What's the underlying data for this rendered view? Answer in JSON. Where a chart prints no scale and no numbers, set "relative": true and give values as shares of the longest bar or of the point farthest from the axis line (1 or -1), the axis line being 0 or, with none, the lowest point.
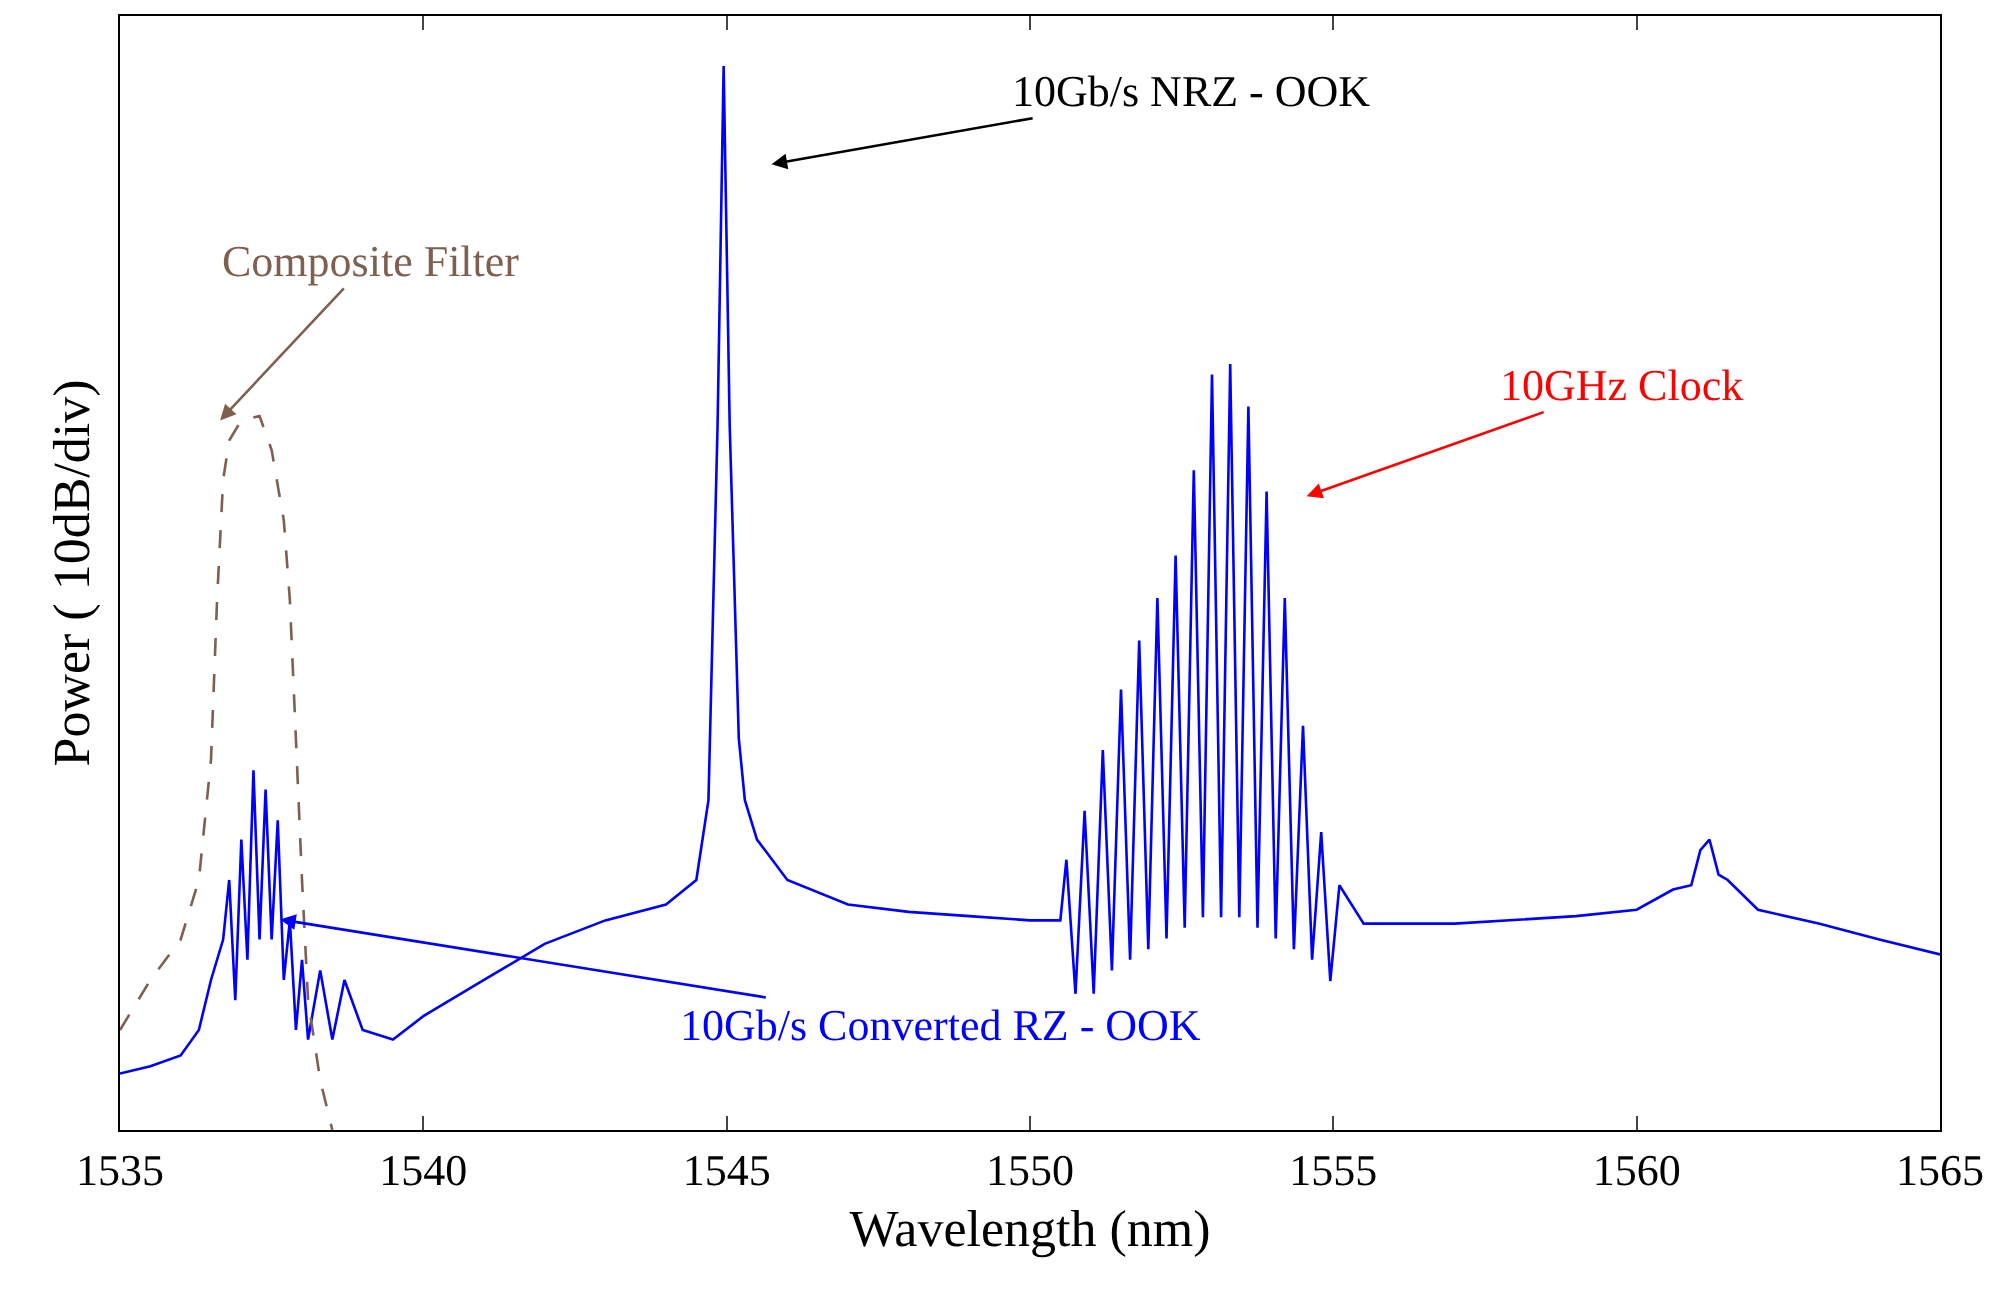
{
  "chart_data": {
    "type": "line",
    "relative": true,
    "xlabel": "Wavelength (nm)",
    "ylabel": "Power ( 10dB/div)",
    "xlim": [
      1535,
      1565
    ],
    "xticks": [
      1535,
      1540,
      1545,
      1550,
      1555,
      1560,
      1565
    ],
    "grid": false,
    "marker": "none",
    "series": [
      {
        "color": "#0000ff",
        "line_style": "solid",
        "x": [
          1535,
          1535.5,
          1536,
          1536.3,
          1536.5,
          1536.7,
          1536.8,
          1536.9,
          1537,
          1537.1,
          1537.2,
          1537.3,
          1537.4,
          1537.5,
          1537.6,
          1537.7,
          1537.8,
          1537.9,
          1538,
          1538.1,
          1538.3,
          1538.5,
          1538.7,
          1539,
          1539.5,
          1540,
          1541,
          1542,
          1543,
          1544,
          1544.5,
          1544.7,
          1544.85,
          1544.95,
          1545.05,
          1545.2,
          1545.3,
          1545.5,
          1546,
          1547,
          1548,
          1549,
          1550,
          1550.5,
          1550.6,
          1550.75,
          1550.9,
          1551.05,
          1551.2,
          1551.35,
          1551.5,
          1551.65,
          1551.8,
          1551.95,
          1552.1,
          1552.25,
          1552.4,
          1552.55,
          1552.7,
          1552.85,
          1553,
          1553.15,
          1553.3,
          1553.45,
          1553.6,
          1553.75,
          1553.9,
          1554.05,
          1554.2,
          1554.35,
          1554.5,
          1554.65,
          1554.8,
          1554.95,
          1555.1,
          1555.5,
          1557,
          1559,
          1560,
          1560.6,
          1560.9,
          1561.05,
          1561.2,
          1561.35,
          1561.5,
          1562,
          1563,
          1564,
          1565
        ],
        "values": [
          0.053,
          0.06,
          0.07,
          0.094,
          0.141,
          0.179,
          0.235,
          0.122,
          0.273,
          0.16,
          0.338,
          0.179,
          0.32,
          0.179,
          0.291,
          0.141,
          0.197,
          0.094,
          0.16,
          0.085,
          0.15,
          0.085,
          0.141,
          0.094,
          0.085,
          0.107,
          0.141,
          0.175,
          0.197,
          0.212,
          0.235,
          0.31,
          0.662,
          1,
          0.662,
          0.368,
          0.31,
          0.273,
          0.235,
          0.212,
          0.205,
          0.201,
          0.197,
          0.197,
          0.254,
          0.128,
          0.3,
          0.128,
          0.357,
          0.15,
          0.414,
          0.16,
          0.46,
          0.17,
          0.5,
          0.18,
          0.54,
          0.19,
          0.62,
          0.2,
          0.71,
          0.2,
          0.72,
          0.2,
          0.68,
          0.19,
          0.6,
          0.18,
          0.5,
          0.17,
          0.38,
          0.16,
          0.28,
          0.14,
          0.23,
          0.194,
          0.194,
          0.201,
          0.207,
          0.226,
          0.23,
          0.263,
          0.273,
          0.24,
          0.235,
          0.207,
          0.194,
          0.179,
          0.165
        ]
      },
      {
        "color": "#7f5f4f",
        "line_style": "dashed",
        "x": [
          1535,
          1535.5,
          1536,
          1536.3,
          1536.5,
          1536.6,
          1536.7,
          1536.8,
          1537,
          1537.3,
          1537.5,
          1537.7,
          1537.8,
          1537.9,
          1538,
          1538.1,
          1538.3,
          1538.5
        ],
        "values": [
          0.094,
          0.141,
          0.179,
          0.235,
          0.348,
          0.498,
          0.611,
          0.648,
          0.667,
          0.671,
          0.639,
          0.573,
          0.498,
          0.367,
          0.235,
          0.122,
          0.047,
          0
        ]
      }
    ],
    "annotations": [
      "10Gb/s NRZ - OOK",
      "Composite Filter",
      "10GHz Clock",
      "10Gb/s Converted RZ - OOK"
    ]
  }
}
